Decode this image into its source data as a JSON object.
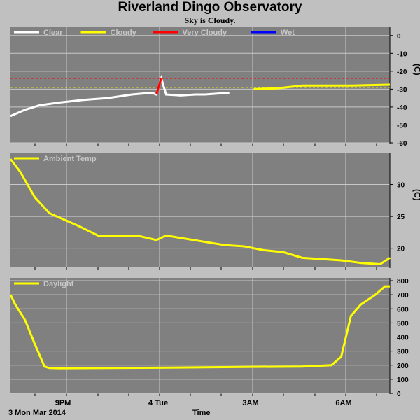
{
  "header": {
    "title": "Riverland Dingo Observatory",
    "subtitle": "Sky is Cloudy."
  },
  "footer": {
    "date_label": "3 Mon Mar 2014",
    "time_label": "Time"
  },
  "x_ticks": [
    "9PM",
    "4 Tue",
    "3AM",
    "6AM"
  ],
  "colors": {
    "panel_bg": "#808080",
    "grid": "#c8c8c8",
    "clear": "#ffffff",
    "cloudy": "#ffff00",
    "very_cloudy": "#ff0000",
    "wet": "#0000ff",
    "page_bg": "#c0c0c0"
  },
  "chart_data": [
    {
      "type": "line",
      "name": "sky",
      "legend": [
        {
          "label": "Clear",
          "color": "#ffffff"
        },
        {
          "label": "Cloudy",
          "color": "#ffff00"
        },
        {
          "label": "Very Cloudy",
          "color": "#ff0000"
        },
        {
          "label": "Wet",
          "color": "#0000ff"
        }
      ],
      "ylabel": "(C)",
      "ylim": [
        -60,
        5
      ],
      "yticks": [
        0,
        -10,
        -20,
        -30,
        -40,
        -50,
        -60
      ],
      "thresholds": [
        {
          "value": -24,
          "color": "#ff0000"
        },
        {
          "value": -29,
          "color": "#ffff00"
        }
      ],
      "x": [
        0,
        0.3,
        0.6,
        1,
        1.5,
        2,
        2.5,
        2.9,
        3,
        3.1,
        3.2,
        3.5,
        3.8,
        4,
        4.5,
        5,
        5.5,
        6,
        6.5,
        7,
        7.8
      ],
      "y": [
        -45,
        -41.5,
        -39,
        -37.5,
        -36,
        -35,
        -33,
        -32,
        -33,
        -24,
        -33,
        -33.5,
        -33,
        -33,
        -32,
        -30,
        -29.5,
        -28,
        -28,
        -28,
        -27.5
      ],
      "segments": [
        {
          "state": "Clear",
          "from": 0,
          "to": 4.55
        },
        {
          "state": "Very Cloudy",
          "from": 2.95,
          "to": 3.15
        },
        {
          "state": "Cloudy",
          "from": 4.55,
          "to": 7.8
        }
      ]
    },
    {
      "type": "line",
      "name": "ambient",
      "legend": [
        {
          "label": "Ambient Temp",
          "color": "#ffff00"
        }
      ],
      "ylabel": "(C)",
      "ylim": [
        17,
        35
      ],
      "yticks": [
        30,
        25,
        20
      ],
      "x": [
        0,
        0.2,
        0.5,
        0.8,
        1.1,
        1.4,
        1.8,
        2.2,
        2.6,
        3.0,
        3.2,
        3.6,
        4.0,
        4.4,
        4.8,
        5.2,
        5.6,
        6.0,
        6.4,
        6.8,
        7.2,
        7.6,
        7.8
      ],
      "y": [
        34,
        32,
        28,
        25.5,
        24.5,
        23.5,
        22,
        22,
        22,
        21.3,
        22,
        21.5,
        21,
        20.5,
        20.3,
        19.7,
        19.4,
        18.5,
        18.3,
        18.1,
        17.7,
        17.5,
        18.5
      ]
    },
    {
      "type": "line",
      "name": "daylight",
      "legend": [
        {
          "label": "Daylight",
          "color": "#ffff00"
        }
      ],
      "ylabel": "",
      "ylim": [
        0,
        820
      ],
      "yticks": [
        800,
        700,
        600,
        500,
        400,
        300,
        200,
        100,
        0
      ],
      "x": [
        0,
        0.1,
        0.3,
        0.5,
        0.7,
        0.8,
        1.0,
        2.0,
        3.0,
        4.0,
        5.0,
        6.0,
        6.6,
        6.8,
        7.0,
        7.2,
        7.5,
        7.7,
        7.8
      ],
      "y": [
        700,
        630,
        520,
        350,
        190,
        180,
        178,
        180,
        182,
        185,
        188,
        190,
        200,
        260,
        550,
        630,
        700,
        760,
        760
      ]
    }
  ]
}
